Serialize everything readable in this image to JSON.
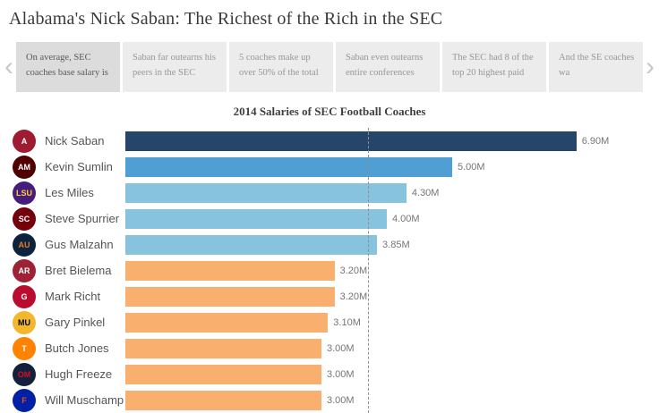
{
  "page": {
    "title": "Alabama's Nick Saban: The Richest of the Rich in the SEC"
  },
  "carousel": {
    "prev_icon": "‹",
    "next_icon": "›",
    "cards": [
      {
        "label": "On average, SEC coaches base salary is",
        "active": true
      },
      {
        "label": "Saban far outearns his peers in the SEC",
        "active": false
      },
      {
        "label": "5 coaches make up over 50% of the total",
        "active": false
      },
      {
        "label": "Saban even outearns entire conferences",
        "active": false
      },
      {
        "label": "The SEC had 8 of the top 20 highest paid",
        "active": false
      },
      {
        "label": "And the SE coaches wa",
        "active": false
      }
    ]
  },
  "teams": [
    {
      "name": "Alabama",
      "abbr": "A",
      "bg": "#9e1b32",
      "fg": "#ffffff"
    },
    {
      "name": "Texas A&M",
      "abbr": "AM",
      "bg": "#500000",
      "fg": "#ffffff"
    },
    {
      "name": "LSU",
      "abbr": "LSU",
      "bg": "#461d7c",
      "fg": "#fdd023"
    },
    {
      "name": "South Carolina",
      "abbr": "SC",
      "bg": "#73000a",
      "fg": "#ffffff"
    },
    {
      "name": "Auburn",
      "abbr": "AU",
      "bg": "#0c2340",
      "fg": "#e87722"
    },
    {
      "name": "Arkansas",
      "abbr": "AR",
      "bg": "#9d2235",
      "fg": "#ffffff"
    },
    {
      "name": "Georgia",
      "abbr": "G",
      "bg": "#ba0c2f",
      "fg": "#ffffff"
    },
    {
      "name": "Missouri",
      "abbr": "MU",
      "bg": "#f1b82d",
      "fg": "#000000"
    },
    {
      "name": "Tennessee",
      "abbr": "T",
      "bg": "#ff8200",
      "fg": "#ffffff"
    },
    {
      "name": "Ole Miss",
      "abbr": "OM",
      "bg": "#14213d",
      "fg": "#ce1126"
    },
    {
      "name": "Florida",
      "abbr": "F",
      "bg": "#0021a5",
      "fg": "#fa4616"
    }
  ],
  "chart_data": {
    "type": "bar",
    "orientation": "horizontal",
    "title": "2014 Salaries of SEC Football Coaches",
    "categories": [
      "Nick Saban",
      "Kevin Sumlin",
      "Les Miles",
      "Steve Spurrier",
      "Gus Malzahn",
      "Bret Bielema",
      "Mark Richt",
      "Gary Pinkel",
      "Butch Jones",
      "Hugh Freeze",
      "Will Muschamp"
    ],
    "values": [
      6.9,
      5.0,
      4.3,
      4.0,
      3.85,
      3.2,
      3.2,
      3.1,
      3.0,
      3.0,
      3.0
    ],
    "labels": [
      "6.90M",
      "5.00M",
      "4.30M",
      "4.00M",
      "3.85M",
      "3.20M",
      "3.20M",
      "3.10M",
      "3.00M",
      "3.00M",
      "3.00M"
    ],
    "colors": [
      "#25456b",
      "#4f9fd4",
      "#87c3de",
      "#87c3de",
      "#87c3de",
      "#f9af6d",
      "#f9af6d",
      "#f9af6d",
      "#f9af6d",
      "#f9af6d",
      "#f9af6d"
    ],
    "unit": "M",
    "xlabel": "",
    "ylabel": "",
    "xlim": [
      0,
      7.5
    ],
    "grid": false,
    "legend": "none",
    "reference_line": {
      "value": 3.9,
      "style": "dashed",
      "meaning": "average SEC base salary"
    }
  }
}
